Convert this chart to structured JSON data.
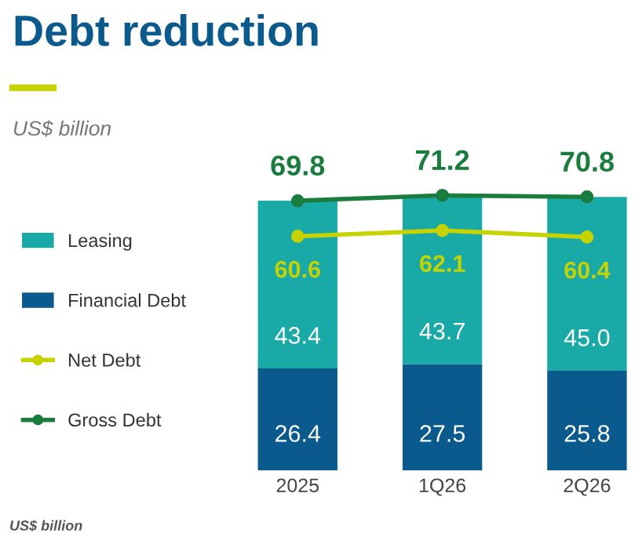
{
  "chart_data": {
    "type": "bar",
    "title": "Debt reduction",
    "subtitle": "US$ billion",
    "annotations": [
      "US$ billion"
    ],
    "categories": [
      "2025",
      "1Q26",
      "2Q26"
    ],
    "stacked": true,
    "series": [
      {
        "name": "Financial Debt",
        "color": "#0b5a8e",
        "values": [
          26.4,
          27.5,
          25.8
        ],
        "value_labels": [
          "26.4",
          "27.5",
          "25.8"
        ]
      },
      {
        "name": "Leasing",
        "color": "#19aaa7",
        "values": [
          43.4,
          43.7,
          45.0
        ],
        "value_labels": [
          "43.4",
          "43.7",
          "45.0"
        ]
      },
      {
        "name": "Net Debt",
        "type": "line",
        "color": "#c6d300",
        "values": [
          60.6,
          62.1,
          60.4
        ],
        "value_labels": [
          "60.6",
          "62.1",
          "60.4"
        ]
      },
      {
        "name": "Gross Debt",
        "type": "line",
        "color": "#1a7d3d",
        "values": [
          69.8,
          71.2,
          70.8
        ],
        "value_labels": [
          "69.8",
          "71.2",
          "70.8"
        ]
      }
    ],
    "marker": "circle",
    "legend": "left",
    "tick_labels": "x"
  }
}
